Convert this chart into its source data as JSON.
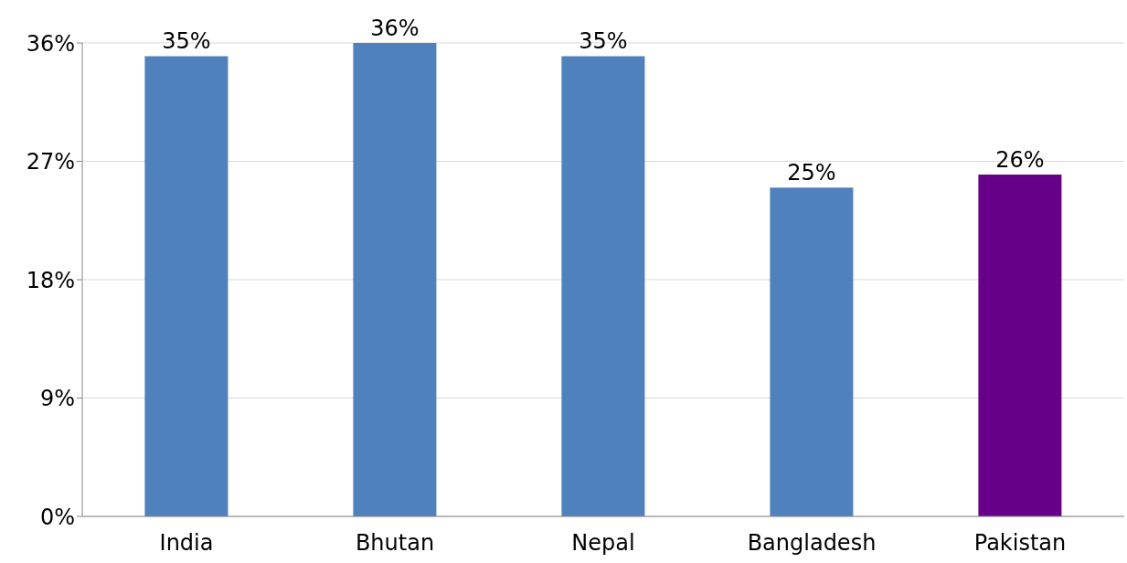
{
  "chart_data": {
    "type": "bar",
    "categories": [
      "India",
      "Bhutan",
      "Nepal",
      "Bangladesh",
      "Pakistan"
    ],
    "values": [
      35,
      36,
      35,
      25,
      26
    ],
    "colors": [
      "#4f81bd",
      "#4f81bd",
      "#4f81bd",
      "#4f81bd",
      "#660088"
    ],
    "value_labels": [
      "35%",
      "36%",
      "35%",
      "25%",
      "26%"
    ],
    "ylim": [
      0,
      36
    ],
    "yticks": [
      {
        "value": 0,
        "label": "0%"
      },
      {
        "value": 9,
        "label": "9%"
      },
      {
        "value": 18,
        "label": "18%"
      },
      {
        "value": 27,
        "label": "27%"
      },
      {
        "value": 36,
        "label": "36%"
      }
    ],
    "grid": "y"
  }
}
